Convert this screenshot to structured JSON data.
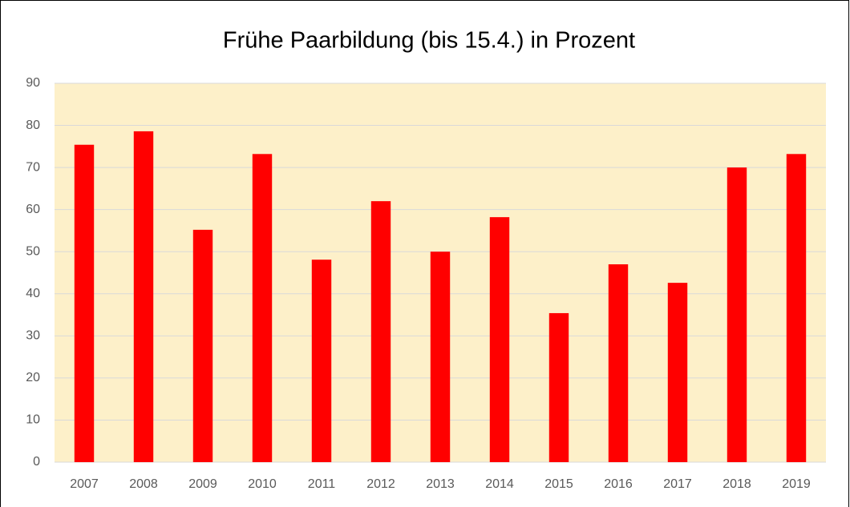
{
  "chart_data": {
    "type": "bar",
    "title": "Frühe Paarbildung (bis 15.4.) in Prozent",
    "categories": [
      "2007",
      "2008",
      "2009",
      "2010",
      "2011",
      "2012",
      "2013",
      "2014",
      "2015",
      "2016",
      "2017",
      "2018",
      "2019"
    ],
    "values": [
      75.4,
      78.6,
      55.2,
      73.2,
      48.1,
      62,
      50,
      58.2,
      35.4,
      47,
      42.6,
      70,
      73.2
    ],
    "color": "#ff0000",
    "plot_background": "#fdf0c9",
    "ylim": [
      0,
      90
    ],
    "yticks": [
      0,
      10,
      20,
      30,
      40,
      50,
      60,
      70,
      80,
      90
    ],
    "grid": true
  }
}
